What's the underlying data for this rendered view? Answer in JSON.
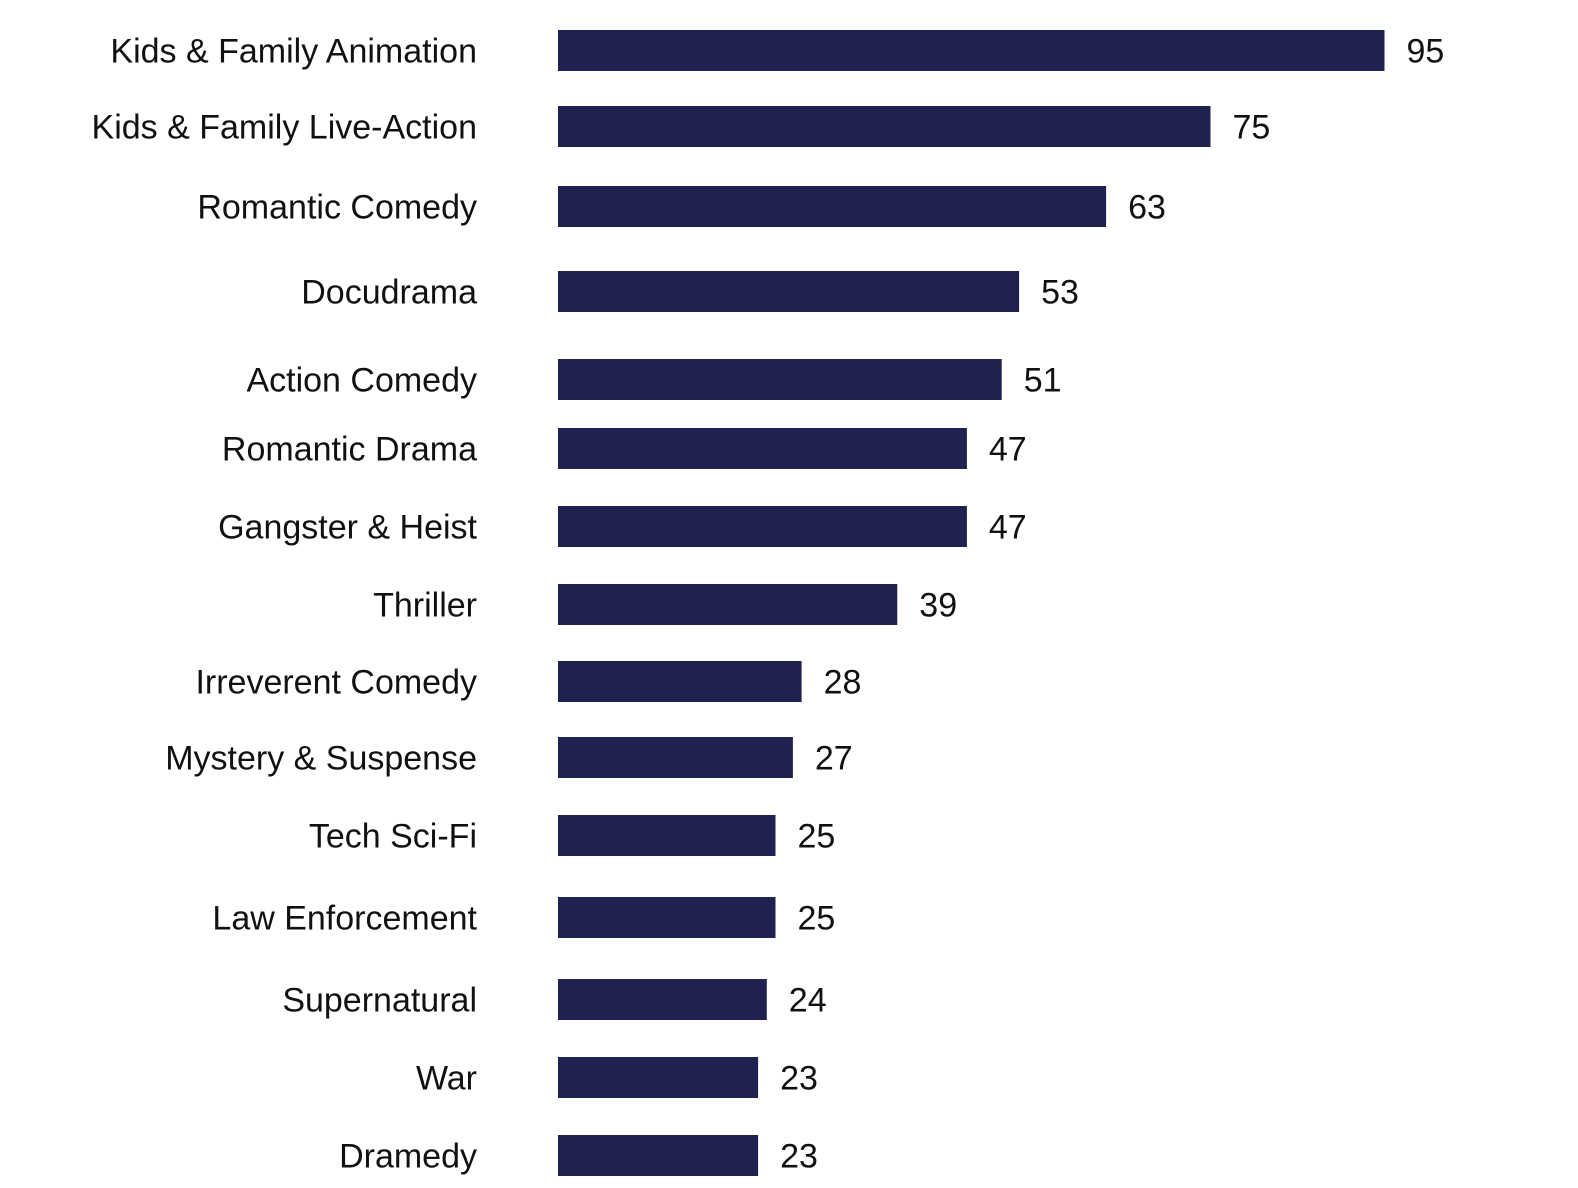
{
  "chart_data": {
    "type": "bar",
    "orientation": "horizontal",
    "categories": [
      "Kids & Family Animation",
      "Kids & Family Live-Action",
      "Romantic Comedy",
      "Docudrama",
      "Action Comedy",
      "Romantic Drama",
      "Gangster & Heist",
      "Thriller",
      "Irreverent Comedy",
      "Mystery & Suspense",
      "Tech Sci-Fi",
      "Law Enforcement",
      "Supernatural",
      "War",
      "Dramedy"
    ],
    "values": [
      95,
      75,
      63,
      53,
      51,
      47,
      47,
      39,
      28,
      27,
      25,
      25,
      24,
      23,
      23
    ],
    "xlim": [
      0,
      100
    ],
    "grid": false,
    "legend": "none",
    "bar_color": "#1f2150",
    "text_color": "#111111"
  }
}
